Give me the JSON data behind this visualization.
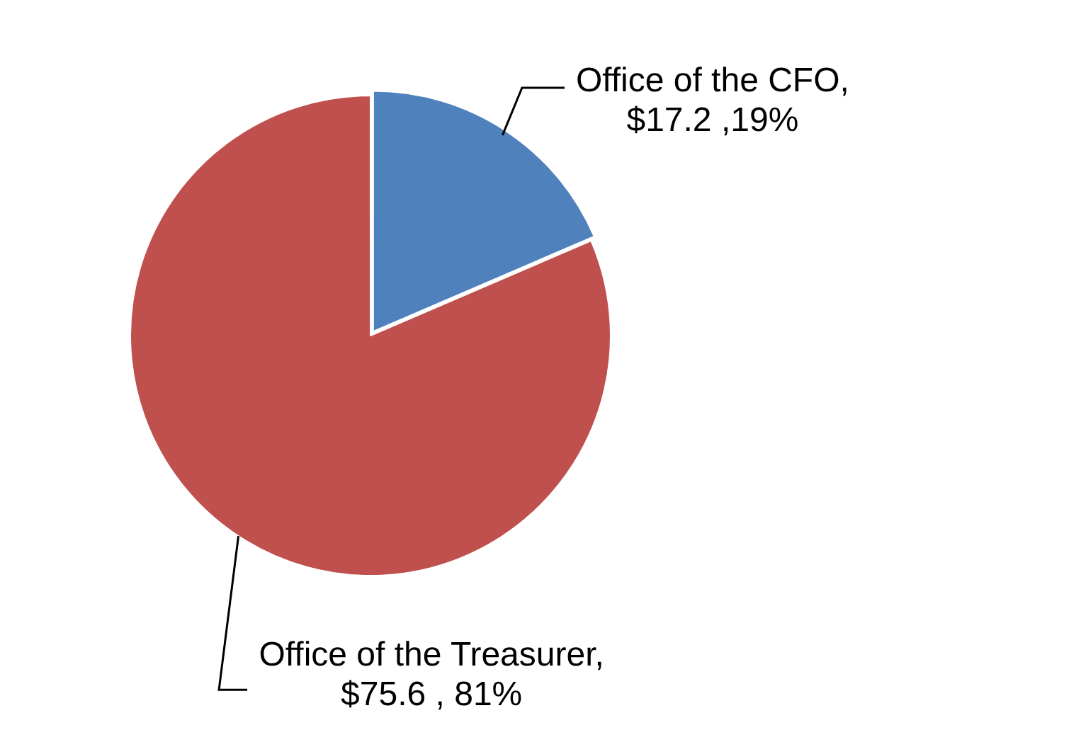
{
  "chart_data": {
    "type": "pie",
    "categories": [
      "Office of the CFO",
      "Office of the Treasurer"
    ],
    "values": [
      17.2,
      75.6
    ],
    "colors": [
      "#4f81bd",
      "#c0504d"
    ],
    "value_labels": [
      ",\n$17.2 ,19%",
      ",\n$75.6 , 81%"
    ],
    "legend": false
  }
}
